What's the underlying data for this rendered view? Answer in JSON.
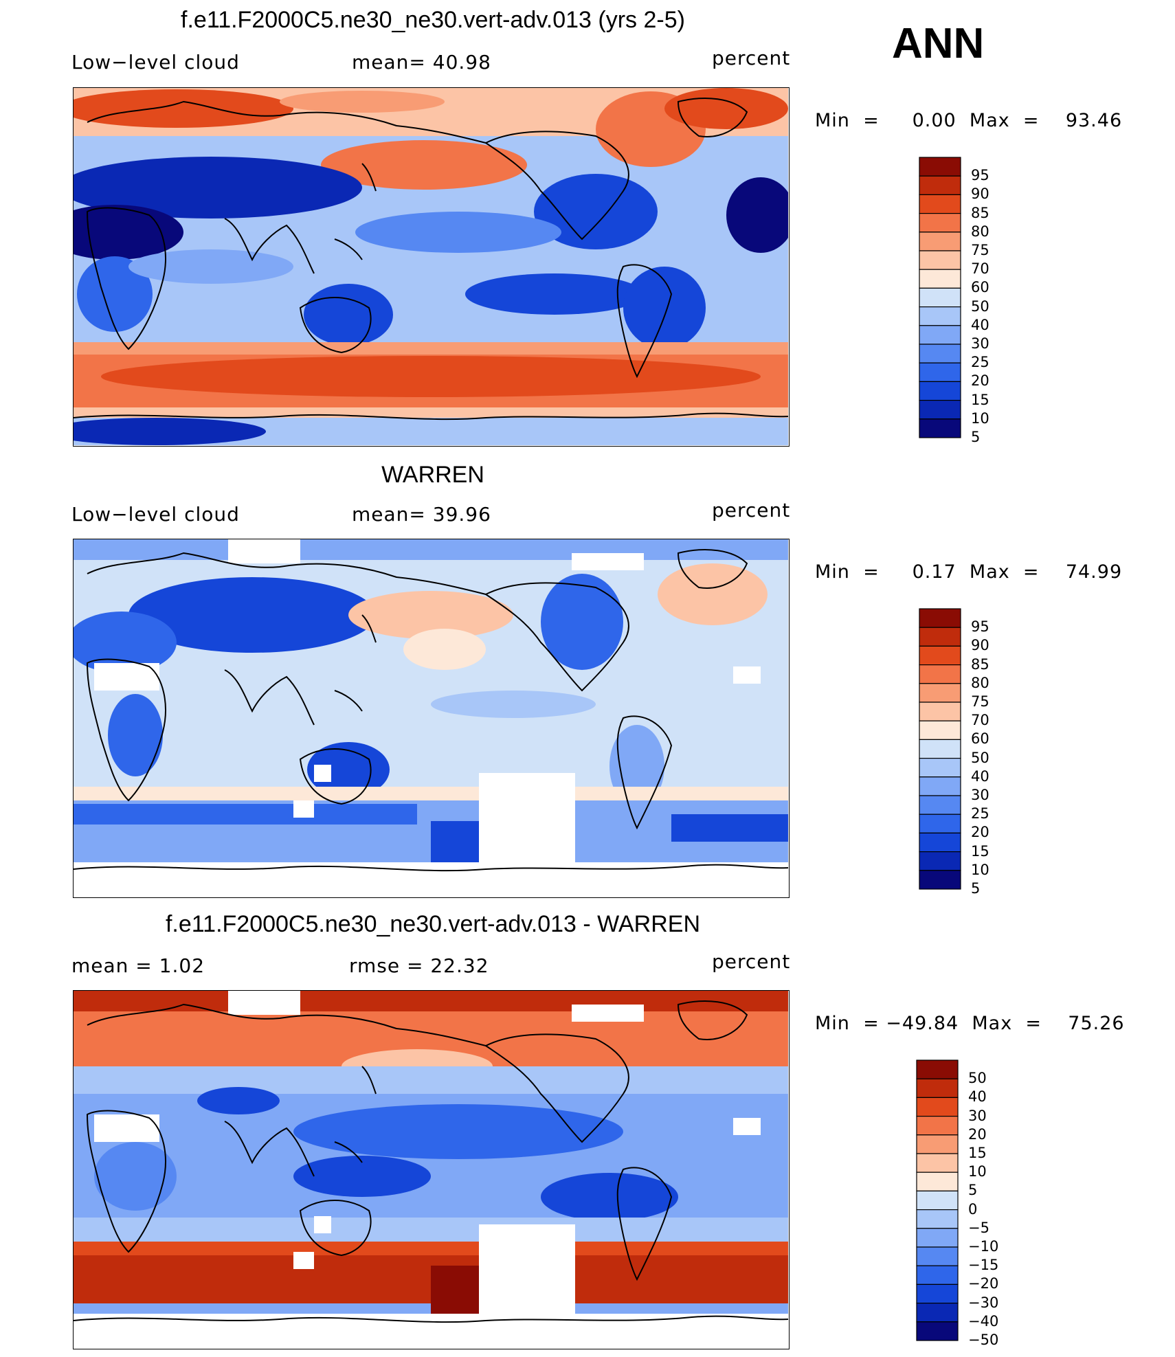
{
  "season": "ANN",
  "colors": {
    "scale": [
      "#08087a",
      "#0a28b4",
      "#1546d8",
      "#2f66ea",
      "#5688f2",
      "#80a8f6",
      "#a8c6f8",
      "#d0e2f8",
      "#fde8d8",
      "#fcc4a6",
      "#f89c74",
      "#f27448",
      "#e24a1c",
      "#c02c0c",
      "#8a0c04"
    ],
    "missing": "#ffffff",
    "coast": "#000000"
  },
  "panels": [
    {
      "id": "model",
      "title": "f.e11.F2000C5.ne30_ne30.vert-adv.013 (yrs 2-5)",
      "left_text": "Low−level cloud",
      "mid_text": "mean=   40.98",
      "units": "percent",
      "minmax": "Min  =     0.00  Max  =    93.46",
      "levels": [
        "95",
        "90",
        "85",
        "80",
        "75",
        "70",
        "60",
        "50",
        "40",
        "30",
        "25",
        "20",
        "15",
        "10",
        "5"
      ]
    },
    {
      "id": "obs",
      "title": "WARREN",
      "left_text": "Low−level cloud",
      "mid_text": "mean=   39.96",
      "units": "percent",
      "minmax": "Min  =     0.17  Max  =    74.99",
      "levels": [
        "95",
        "90",
        "85",
        "80",
        "75",
        "70",
        "60",
        "50",
        "40",
        "30",
        "25",
        "20",
        "15",
        "10",
        "5"
      ]
    },
    {
      "id": "diff",
      "title": "f.e11.F2000C5.ne30_ne30.vert-adv.013 - WARREN",
      "left_text": "mean  =     1.02",
      "mid_text": "rmse  =    22.32",
      "units": "percent",
      "minmax": "Min  = −49.84  Max  =    75.26",
      "levels": [
        "50",
        "40",
        "30",
        "20",
        "15",
        "10",
        "5",
        "0",
        "−5",
        "−10",
        "−15",
        "−20",
        "−30",
        "−40",
        "−50"
      ]
    }
  ]
}
